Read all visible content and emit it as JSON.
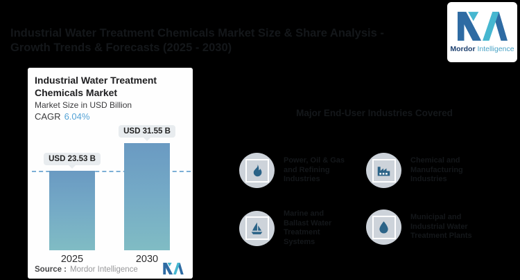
{
  "page": {
    "background": "#000000",
    "title_line1": "Industrial Water Treatment Chemicals Market Size & Share Analysis -",
    "title_line2": "Growth Trends & Forecasts (2025 - 2030)"
  },
  "brand": {
    "name_primary": "Mordor",
    "name_secondary": "Intelligence",
    "navy": "#2e6ba3",
    "teal": "#46b7d0"
  },
  "chart_card": {
    "title": "Industrial Water Treatment Chemicals Market",
    "subtitle": "Market Size in USD Billion",
    "cagr_label": "CAGR",
    "cagr_value": "6.04%",
    "source_label": "Source :",
    "source_value": "Mordor Intelligence"
  },
  "chart_data": {
    "type": "bar",
    "title": "Industrial Water Treatment Chemicals Market",
    "ylabel": "Market Size in USD Billion",
    "cagr": "6.04%",
    "categories": [
      "2025",
      "2030"
    ],
    "values": [
      23.53,
      31.55
    ],
    "value_labels": [
      "USD 23.53 B",
      "USD 31.55 B"
    ],
    "bar_color_top": "#6a9ac2",
    "bar_color_bottom": "#80bcc4",
    "dashed_reference_level": 23.53,
    "grid": "off",
    "legend": "none"
  },
  "right_panel": {
    "heading": "Major End-User Industries Covered",
    "items": [
      {
        "icon": "flame-icon",
        "label": "Power, Oil & Gas\nand Refining\nIndustries"
      },
      {
        "icon": "factory-icon",
        "label": "Chemical and\nManufacturing\nIndustries"
      },
      {
        "icon": "sailboat-icon",
        "label": "Marine and\nBallast Water\nTreatment\nSystems"
      },
      {
        "icon": "water-drop-icon",
        "label": "Municipal and\nIndustrial Water\nTreatment Plants"
      }
    ]
  }
}
